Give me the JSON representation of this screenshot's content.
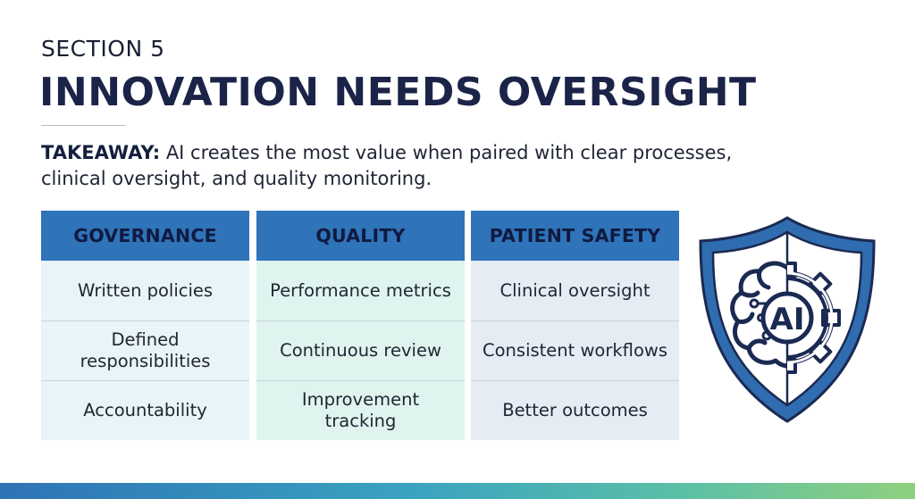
{
  "header": {
    "section": "SECTION 5",
    "title": "INNOVATION NEEDS OVERSIGHT"
  },
  "takeaway": {
    "label": "TAKEAWAY:",
    "text": "AI creates the most value when paired with clear processes, clinical oversight, and quality monitoring."
  },
  "columns": [
    {
      "heading": "GOVERNANCE",
      "items": [
        "Written policies",
        "Defined responsibilities",
        "Accountability"
      ]
    },
    {
      "heading": "QUALITY",
      "items": [
        "Performance metrics",
        "Continuous review",
        "Improvement tracking"
      ]
    },
    {
      "heading": "PATIENT SAFETY",
      "items": [
        "Clinical oversight",
        "Consistent workflows",
        "Better outcomes"
      ]
    }
  ],
  "emblem": {
    "text": "AI",
    "icon": "ai-brain-gear-shield-icon"
  },
  "colors": {
    "header_blue": "#2f73b9",
    "title_navy": "#1b2448",
    "shield_blue": "#2f6db0",
    "gradient": [
      "#2e73b6",
      "#3aa3c0",
      "#5cc0a6",
      "#8fd07e"
    ]
  }
}
